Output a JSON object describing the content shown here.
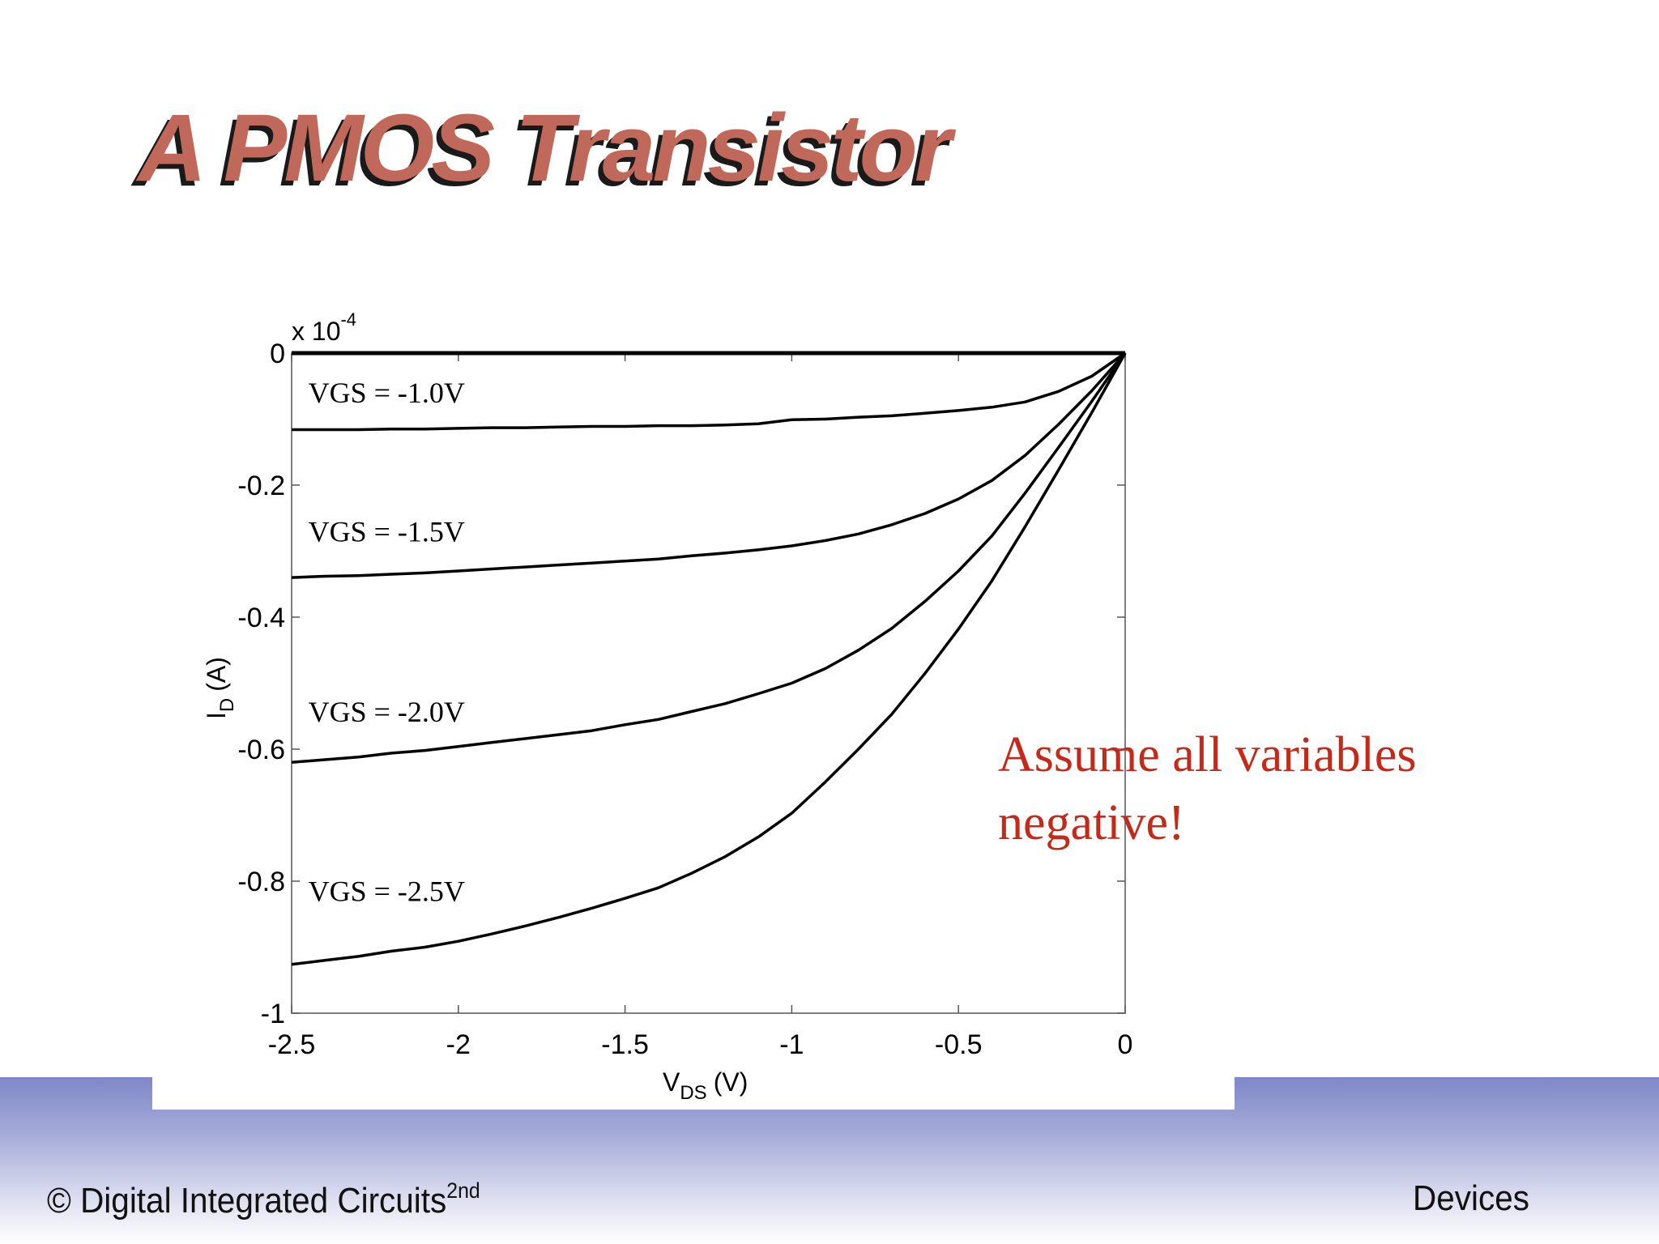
{
  "slide": {
    "title": "A PMOS Transistor",
    "note": "Assume all variables negative!",
    "footer_left": "© Digital Integrated Circuits",
    "footer_left_sup": "2nd",
    "footer_right": "Devices",
    "colors": {
      "title": "#c0685a",
      "title_shadow": "#1a1a1a",
      "note": "#c42a1a",
      "footer_band": "#7e87c9"
    }
  },
  "chart_data": {
    "type": "line",
    "xlabel_main": "V",
    "xlabel_sub": "DS",
    "xlabel_unit": "(V)",
    "ylabel_main": "I",
    "ylabel_sub": "D",
    "ylabel_unit": "(A)",
    "y_multiplier_base": "x 10",
    "y_multiplier_exp": "-4",
    "xlim": [
      -2.5,
      0
    ],
    "ylim": [
      -1,
      0
    ],
    "x_ticks": [
      -2.5,
      -2,
      -1.5,
      -1,
      -0.5,
      0
    ],
    "x_tick_labels": [
      "-2.5",
      "-2",
      "-1.5",
      "-1",
      "-0.5",
      "0"
    ],
    "y_ticks": [
      0,
      -0.2,
      -0.4,
      -0.6,
      -0.8,
      -1
    ],
    "y_tick_labels": [
      "0",
      "-0.2",
      "-0.4",
      "-0.6",
      "-0.8",
      "-1"
    ],
    "grid": false,
    "x": [
      -2.5,
      -2.4,
      -2.3,
      -2.2,
      -2.1,
      -2.0,
      -1.9,
      -1.8,
      -1.7,
      -1.6,
      -1.5,
      -1.4,
      -1.3,
      -1.2,
      -1.1,
      -1.0,
      -0.9,
      -0.8,
      -0.7,
      -0.6,
      -0.5,
      -0.4,
      -0.3,
      -0.2,
      -0.1,
      0
    ],
    "series": [
      {
        "name": "VGS = -1.0V",
        "values": [
          -0.116,
          -0.116,
          -0.116,
          -0.115,
          -0.115,
          -0.114,
          -0.113,
          -0.113,
          -0.112,
          -0.111,
          -0.111,
          -0.11,
          -0.11,
          -0.109,
          -0.107,
          -0.101,
          -0.1,
          -0.097,
          -0.095,
          -0.091,
          -0.087,
          -0.082,
          -0.074,
          -0.058,
          -0.035,
          0
        ]
      },
      {
        "name": "VGS = -1.5V",
        "values": [
          -0.34,
          -0.338,
          -0.337,
          -0.335,
          -0.333,
          -0.33,
          -0.327,
          -0.324,
          -0.321,
          -0.318,
          -0.315,
          -0.312,
          -0.307,
          -0.303,
          -0.298,
          -0.292,
          -0.284,
          -0.274,
          -0.26,
          -0.243,
          -0.221,
          -0.193,
          -0.155,
          -0.108,
          -0.057,
          0
        ]
      },
      {
        "name": "VGS = -2.0V",
        "values": [
          -0.62,
          -0.616,
          -0.612,
          -0.606,
          -0.602,
          -0.596,
          -0.59,
          -0.584,
          -0.578,
          -0.572,
          -0.563,
          -0.555,
          -0.543,
          -0.531,
          -0.516,
          -0.5,
          -0.478,
          -0.45,
          -0.417,
          -0.376,
          -0.33,
          -0.277,
          -0.212,
          -0.143,
          -0.073,
          0
        ]
      },
      {
        "name": "VGS = -2.5V",
        "values": [
          -0.926,
          -0.92,
          -0.914,
          -0.906,
          -0.9,
          -0.891,
          -0.88,
          -0.868,
          -0.855,
          -0.841,
          -0.826,
          -0.81,
          -0.788,
          -0.763,
          -0.733,
          -0.697,
          -0.65,
          -0.6,
          -0.547,
          -0.485,
          -0.418,
          -0.345,
          -0.263,
          -0.177,
          -0.09,
          0
        ]
      },
      {
        "name": "",
        "values": [
          0,
          0,
          0,
          0,
          0,
          0,
          0,
          0,
          0,
          0,
          0,
          0,
          0,
          0,
          0,
          0,
          0,
          0,
          0,
          0,
          0,
          0,
          0,
          0,
          0,
          0
        ]
      }
    ],
    "curve_labels": [
      {
        "text": "VGS = -1.0V",
        "x": -2.45,
        "y": -0.075
      },
      {
        "text": "VGS = -1.5V",
        "x": -2.45,
        "y": -0.285
      },
      {
        "text": "VGS = -2.0V",
        "x": -2.45,
        "y": -0.558
      },
      {
        "text": "VGS = -2.5V",
        "x": -2.45,
        "y": -0.83
      }
    ]
  }
}
